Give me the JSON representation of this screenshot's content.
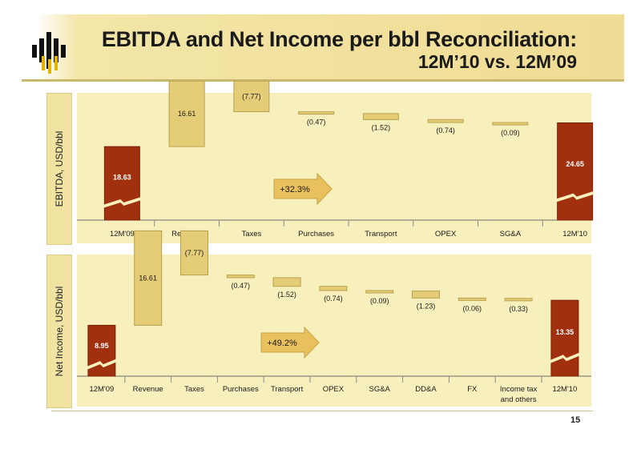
{
  "title": {
    "line1": "EBITDA and Net Income per bbl Reconciliation:",
    "line2": "12M’10 vs. 12M’09"
  },
  "page_number": "15",
  "colors": {
    "end_bar": "#a1300e",
    "step_bar": "#e5cc76",
    "step_stroke": "#b9a04c",
    "panel_bg": "#f7f0bd",
    "arrow": "#e8c05c"
  },
  "chart_data": [
    {
      "type": "bar",
      "ylabel": "EBITDA, USD/bbl",
      "categories": [
        "12M'09",
        "Revenue",
        "Taxes",
        "Purchases",
        "Transport",
        "OPEX",
        "SG&A",
        "12M'10"
      ],
      "values": [
        18.63,
        16.61,
        -7.77,
        -0.47,
        -1.52,
        -0.74,
        -0.09,
        24.65
      ],
      "value_labels": [
        "18.63",
        "16.61",
        "(7.77)",
        "(0.47)",
        "(1.52)",
        "(0.74)",
        "(0.09)",
        "24.65"
      ],
      "bar_kinds": [
        "total",
        "step",
        "step",
        "step",
        "step",
        "step",
        "step",
        "total"
      ],
      "annotation": "+32.3%"
    },
    {
      "type": "bar",
      "ylabel": "Net Income, USD/bbl",
      "categories": [
        "12M'09",
        "Revenue",
        "Taxes",
        "Purchases",
        "Transport",
        "OPEX",
        "SG&A",
        "DD&A",
        "FX",
        "Income tax and others",
        "12M'10"
      ],
      "values": [
        8.95,
        16.61,
        -7.77,
        -0.47,
        -1.52,
        -0.74,
        -0.09,
        -1.23,
        -0.06,
        -0.33,
        13.35
      ],
      "value_labels": [
        "8.95",
        "16.61",
        "(7.77)",
        "(0.47)",
        "(1.52)",
        "(0.74)",
        "(0.09)",
        "(1.23)",
        "(0.06)",
        "(0.33)",
        "13.35"
      ],
      "bar_kinds": [
        "total",
        "step",
        "step",
        "step",
        "step",
        "step",
        "step",
        "step",
        "step",
        "step",
        "total"
      ],
      "annotation": "+49.2%"
    }
  ]
}
